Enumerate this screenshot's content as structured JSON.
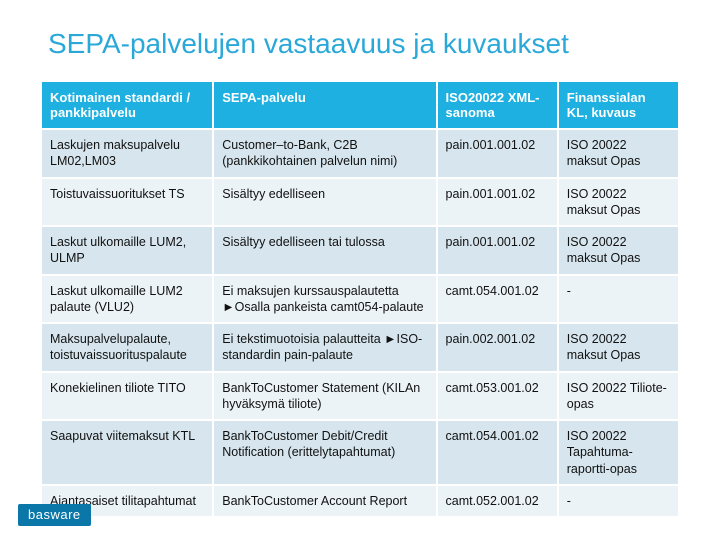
{
  "title": "SEPA-palvelujen vastaavuus ja kuvaukset",
  "title_color": "#2aa8d8",
  "header_bg": "#1eb0e0",
  "header_fg": "#ffffff",
  "row_bg_odd": "#d7e6ee",
  "row_bg_even": "#ecf3f7",
  "text_color": "#111111",
  "columns": [
    "Kotimainen standardi / pankkipalvelu",
    "SEPA-palvelu",
    "ISO20022 XML-sanoma",
    "Finanssialan KL, kuvaus"
  ],
  "rows": [
    [
      "Laskujen maksupalvelu LM02,LM03",
      "Customer–to-Bank, C2B (pankkikohtainen palvelun nimi)",
      "pain.001.001.02",
      "ISO 20022 maksut Opas"
    ],
    [
      "Toistuvaissuoritukset TS",
      "Sisältyy edelliseen",
      "pain.001.001.02",
      "ISO 20022 maksut Opas"
    ],
    [
      "Laskut ulkomaille LUM2, ULMP",
      "Sisältyy edelliseen tai tulossa",
      "pain.001.001.02",
      "ISO 20022 maksut Opas"
    ],
    [
      "Laskut ulkomaille LUM2 palaute (VLU2)",
      "Ei maksujen kurssauspalautetta ►Osalla pankeista camt054-palaute",
      "camt.054.001.02",
      "-"
    ],
    [
      "Maksupalvelupalaute, toistuvaissuorituspalaute",
      "Ei tekstimuotoisia palautteita ►ISO-standardin pain-palaute",
      "pain.002.001.02",
      "ISO 20022 maksut Opas"
    ],
    [
      "Konekielinen tiliote TITO",
      "BankToCustomer Statement (KILAn hyväksymä tiliote)",
      "camt.053.001.02",
      "ISO 20022 Tiliote-opas"
    ],
    [
      "Saapuvat viitemaksut KTL",
      "BankToCustomer Debit/Credit Notification (erittelytapahtumat)",
      "camt.054.001.02",
      "ISO 20022 Tapahtuma-raportti-opas"
    ],
    [
      "Ajantasaiset tilitapahtumat",
      "BankToCustomer Account Report",
      "camt.052.001.02",
      "  -"
    ]
  ],
  "logo_text": "basware",
  "logo_bg": "#0a77a8"
}
